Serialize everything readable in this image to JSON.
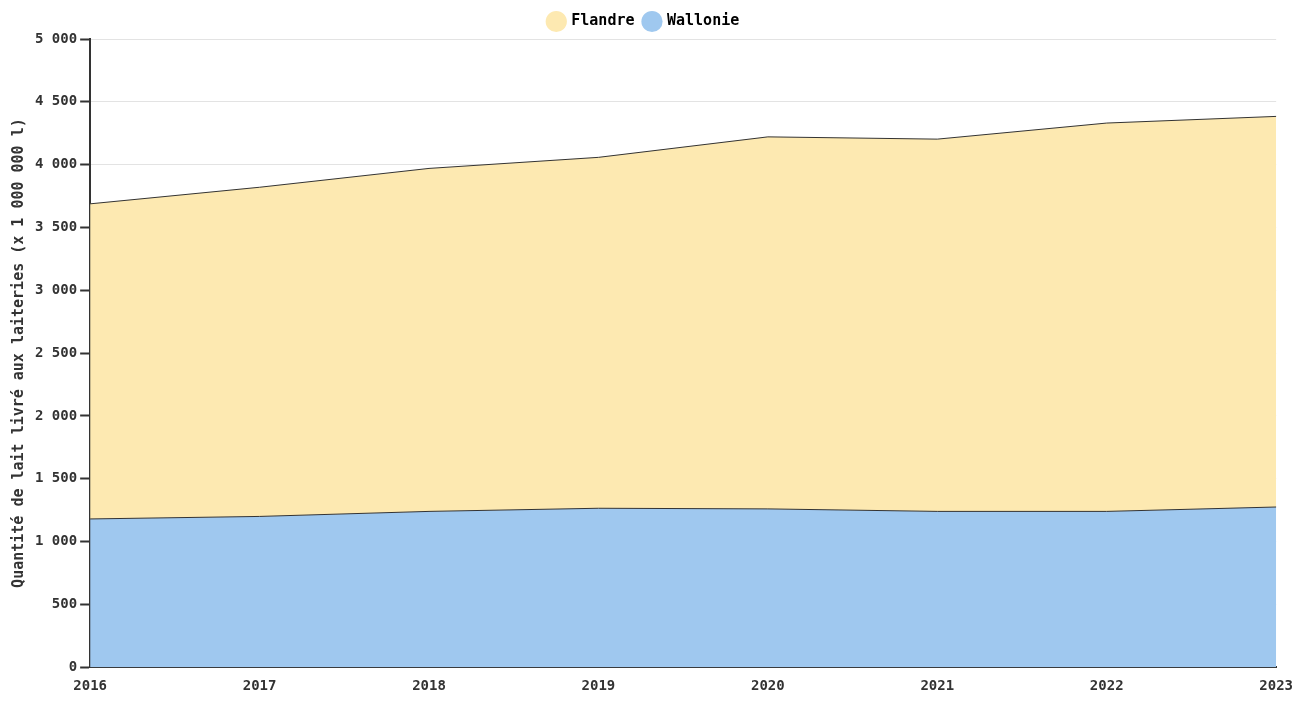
{
  "chart_data": {
    "type": "area",
    "stacked": true,
    "ylabel": "Quantité de lait livré aux laiteries (x 1 000 000 l)",
    "categories": [
      "2016",
      "2017",
      "2018",
      "2019",
      "2020",
      "2021",
      "2022",
      "2023"
    ],
    "series": [
      {
        "name": "Wallonie",
        "color": "#9fc8ef",
        "values": [
          1180,
          1200,
          1240,
          1265,
          1260,
          1240,
          1240,
          1275
        ]
      },
      {
        "name": "Flandre",
        "color": "#fde9b1",
        "values": [
          2508,
          2620,
          2730,
          2793,
          2961,
          2963,
          3091,
          3109
        ]
      }
    ],
    "ylim": [
      0,
      5000
    ],
    "yticks": [
      0,
      {
        "value": 500,
        "label": "500"
      },
      {
        "value": 1000,
        "label": "1 000"
      },
      {
        "value": 1500,
        "label": "1 500"
      },
      {
        "value": 2000,
        "label": "2 000"
      },
      {
        "value": 2500,
        "label": "2 500"
      },
      {
        "value": 3000,
        "label": "3 000"
      },
      {
        "value": 3500,
        "label": "3 500"
      },
      {
        "value": 4000,
        "label": "4 000"
      },
      {
        "value": 4500,
        "label": "4 500"
      },
      {
        "value": 5000,
        "label": "5 000"
      }
    ],
    "grid": "y",
    "legend": "top"
  }
}
